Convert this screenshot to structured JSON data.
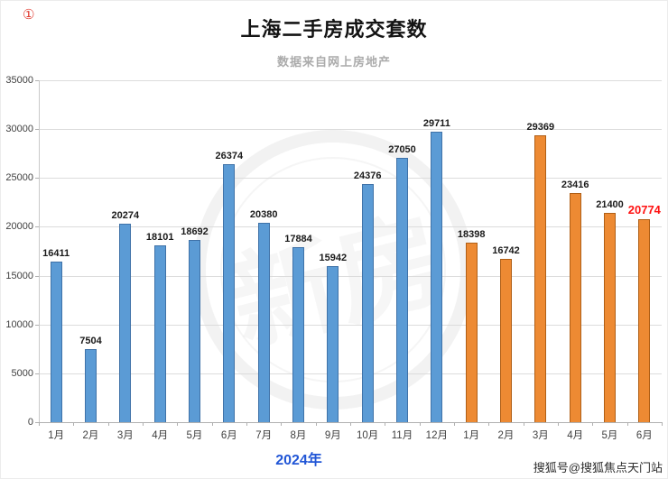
{
  "page": {
    "corner_marker": "①"
  },
  "header": {
    "title": "上海二手房成交套数",
    "subtitle": "数据来自网上房地产"
  },
  "watermark": {
    "text": "新房"
  },
  "axis": {
    "year_label": "2024年"
  },
  "credit": {
    "text": "搜狐号@搜狐焦点天门站"
  },
  "chart_data": {
    "type": "bar",
    "title": "上海二手房成交套数",
    "subtitle": "数据来自网上房地产",
    "categories": [
      "1月",
      "2月",
      "3月",
      "4月",
      "5月",
      "6月",
      "7月",
      "8月",
      "9月",
      "10月",
      "11月",
      "12月",
      "1月",
      "2月",
      "3月",
      "4月",
      "5月",
      "6月"
    ],
    "values": [
      16411,
      7504,
      20274,
      18101,
      18692,
      26374,
      20380,
      17884,
      15942,
      24376,
      27050,
      29711,
      18398,
      16742,
      29369,
      23416,
      21400,
      20774
    ],
    "blue_count": 12,
    "bar_color_blue": "#5B9BD5",
    "bar_border_blue": "#3F72A8",
    "bar_color_orange": "#ED8A33",
    "bar_border_orange": "#B05F16",
    "value_label_color": "#1a1a1a",
    "last_value_label_color": "#FF1212",
    "ylim": [
      0,
      35000
    ],
    "yticks": [
      0,
      5000,
      10000,
      15000,
      20000,
      25000,
      30000,
      35000
    ],
    "grid": true,
    "legend": "none",
    "x_axis_year_label": "2024年"
  }
}
